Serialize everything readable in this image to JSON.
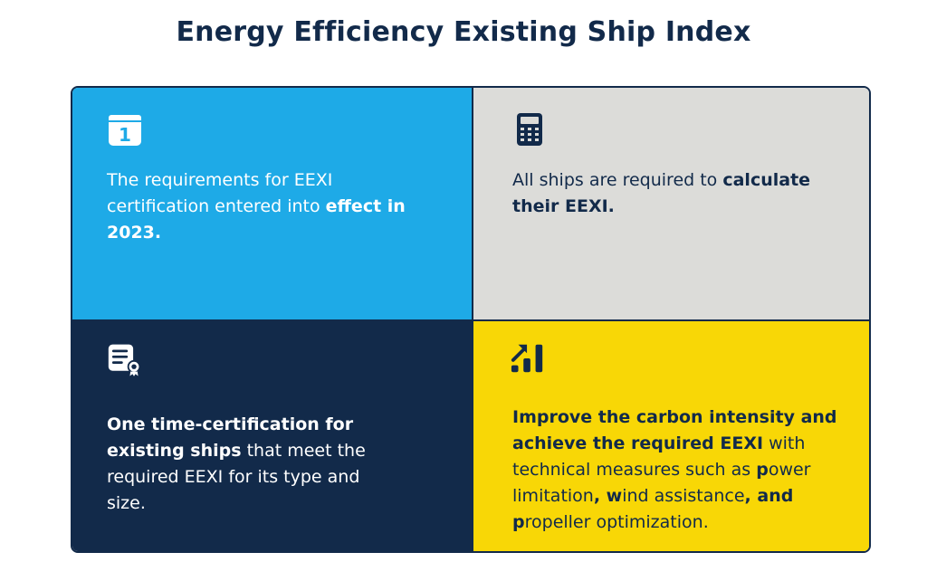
{
  "title": "Energy Efficiency Existing Ship Index",
  "colors": {
    "navy": "#122a4a",
    "blue": "#1eaae7",
    "gray": "#dcdcd9",
    "yellow": "#f8d706",
    "white": "#ffffff"
  },
  "cells": [
    {
      "icon": "calendar-icon",
      "icon_text": "1",
      "text": [
        {
          "t": "The requirements for EEXI certification entered into ",
          "b": false
        },
        {
          "t": "effect in 2023.",
          "b": true
        }
      ]
    },
    {
      "icon": "calculator-icon",
      "text": [
        {
          "t": "All ships are required to ",
          "b": false
        },
        {
          "t": "calculate their EEXI.",
          "b": true
        }
      ]
    },
    {
      "icon": "certificate-icon",
      "text": [
        {
          "t": "One time-certification for existing ships",
          "b": true
        },
        {
          "t": " that meet the required EEXI for its type and size.",
          "b": false
        }
      ]
    },
    {
      "icon": "growth-chart-icon",
      "text": [
        {
          "t": "Improve the carbon intensity and achieve the required EEXI",
          "b": true
        },
        {
          "t": " with technical measures such as ",
          "b": false
        },
        {
          "t": "p",
          "b": true
        },
        {
          "t": "ower limitation",
          "b": false
        },
        {
          "t": ", w",
          "b": true
        },
        {
          "t": "ind assistance",
          "b": false
        },
        {
          "t": ", and",
          "b": true
        },
        {
          "t": " ",
          "b": false
        },
        {
          "t": "p",
          "b": true
        },
        {
          "t": "ropeller optimization.",
          "b": false
        }
      ]
    }
  ]
}
